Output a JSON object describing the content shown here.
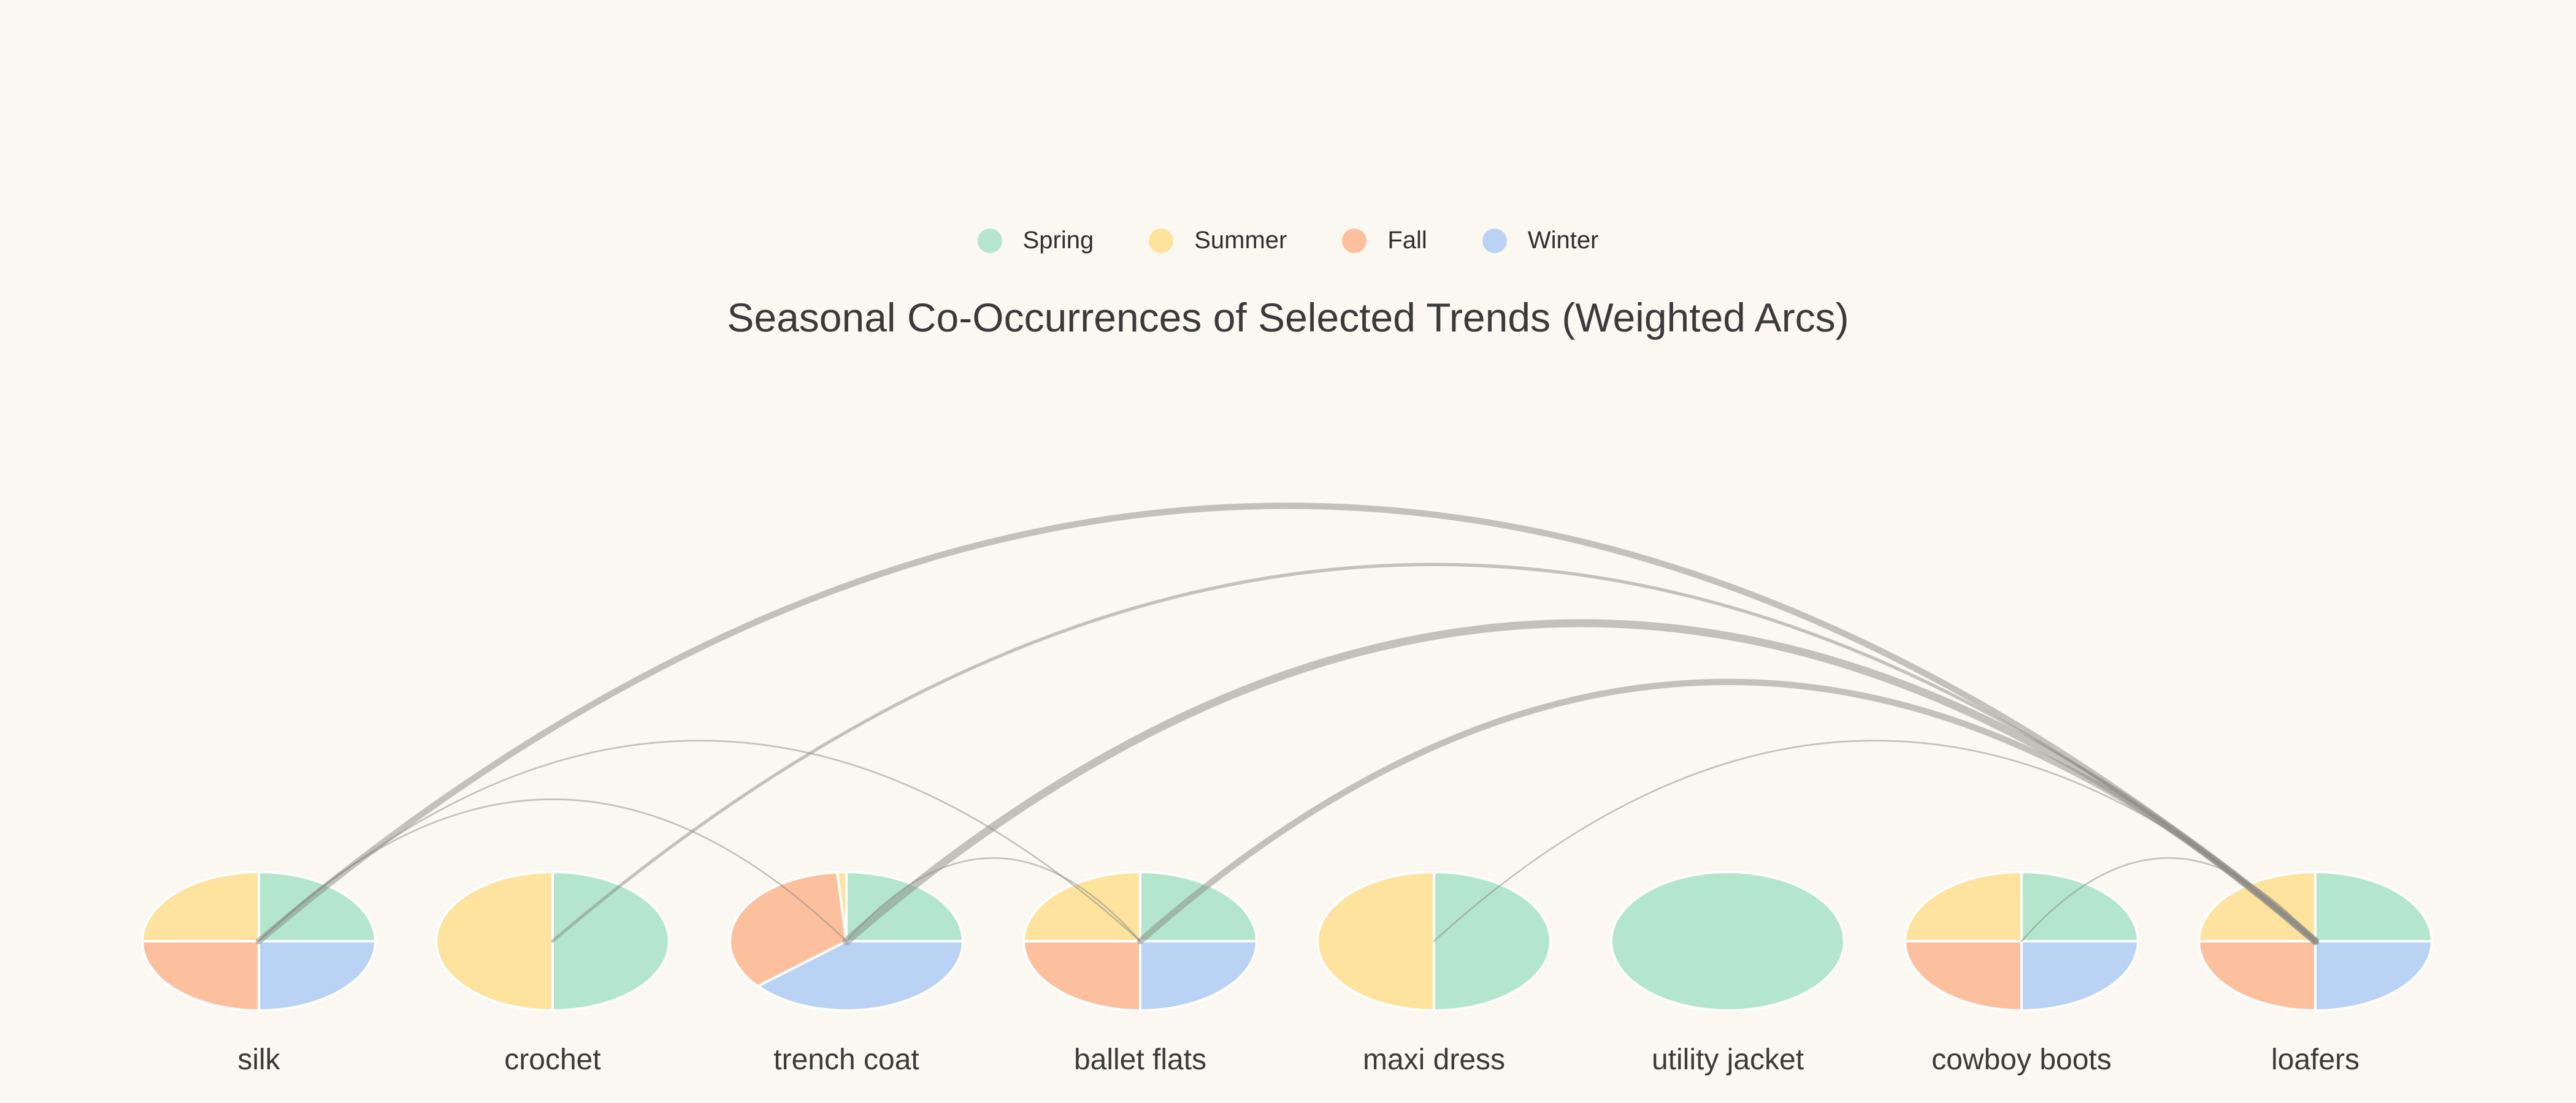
{
  "chart_data": {
    "type": "arc-diagram",
    "title": "Seasonal Co-Occurrences of Selected Trends (Weighted Arcs)",
    "legend": [
      {
        "label": "Spring",
        "color": "#b3e6cd"
      },
      {
        "label": "Summer",
        "color": "#fee39f"
      },
      {
        "label": "Fall",
        "color": "#fdc09f"
      },
      {
        "label": "Winter",
        "color": "#bad2f4"
      }
    ],
    "legend_placement": "top-center",
    "nodes": [
      {
        "name": "silk",
        "seasons": {
          "Spring": 1,
          "Summer": 1,
          "Fall": 1,
          "Winter": 1
        }
      },
      {
        "name": "crochet",
        "seasons": {
          "Spring": 1,
          "Summer": 1,
          "Fall": 0,
          "Winter": 0
        }
      },
      {
        "name": "trench coat",
        "seasons": {
          "Spring": 1,
          "Summer": 0.05,
          "Fall": 1.4,
          "Winter": 1.55
        }
      },
      {
        "name": "ballet flats",
        "seasons": {
          "Spring": 1,
          "Summer": 1,
          "Fall": 1,
          "Winter": 1
        }
      },
      {
        "name": "maxi dress",
        "seasons": {
          "Spring": 1,
          "Summer": 1,
          "Fall": 0,
          "Winter": 0
        }
      },
      {
        "name": "utility jacket",
        "seasons": {
          "Spring": 1,
          "Summer": 0,
          "Fall": 0,
          "Winter": 0
        }
      },
      {
        "name": "cowboy boots",
        "seasons": {
          "Spring": 1,
          "Summer": 1,
          "Fall": 1,
          "Winter": 1
        }
      },
      {
        "name": "loafers",
        "seasons": {
          "Spring": 1,
          "Summer": 1,
          "Fall": 1,
          "Winter": 1
        }
      }
    ],
    "edges": [
      {
        "source": "silk",
        "target": "loafers",
        "weight": 4
      },
      {
        "source": "crochet",
        "target": "loafers",
        "weight": 2
      },
      {
        "source": "trench coat",
        "target": "loafers",
        "weight": 5
      },
      {
        "source": "ballet flats",
        "target": "loafers",
        "weight": 4
      },
      {
        "source": "silk",
        "target": "ballet flats",
        "weight": 1
      },
      {
        "source": "silk",
        "target": "trench coat",
        "weight": 1
      },
      {
        "source": "trench coat",
        "target": "ballet flats",
        "weight": 1
      },
      {
        "source": "maxi dress",
        "target": "loafers",
        "weight": 1
      },
      {
        "source": "cowboy boots",
        "target": "loafers",
        "weight": 1
      }
    ],
    "colors": {
      "background": "#fbf8f1",
      "arc": "#8a8a84",
      "label": "#3a3a3a"
    }
  }
}
